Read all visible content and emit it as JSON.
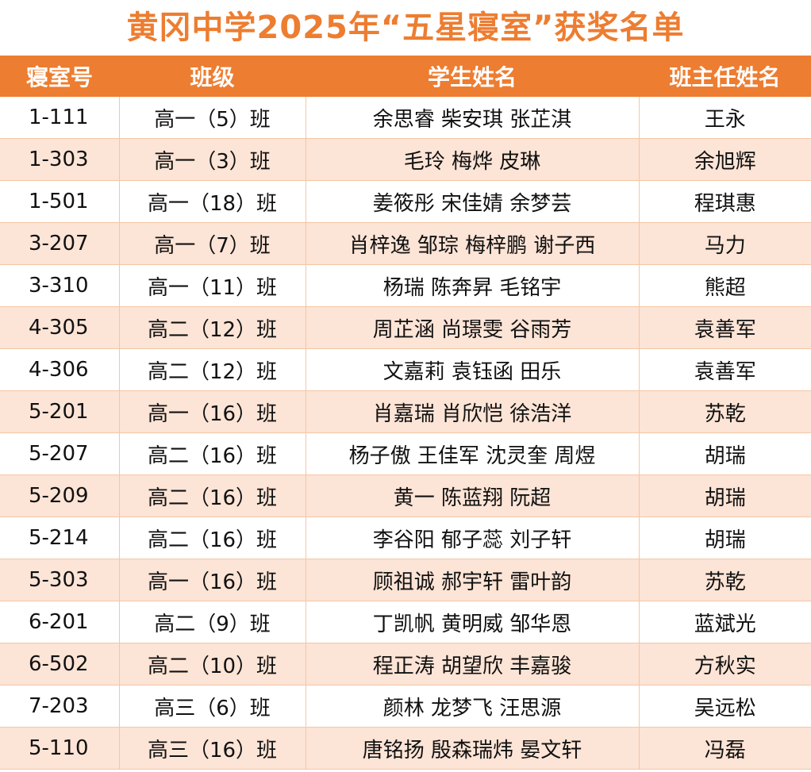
{
  "title": "黄冈中学2025年“五星寝室”获奖名单",
  "headers": [
    "寝室号",
    "班级",
    "学生姓名",
    "班主任姓名"
  ],
  "colors": {
    "accent": "#ED7D31",
    "stripe": "#FCE4D6",
    "border": "#F4C6A5"
  },
  "rows": [
    {
      "room": "1-111",
      "class": "高一（5）班",
      "students": "余思睿 柴安琪 张芷淇",
      "teacher": "王永"
    },
    {
      "room": "1-303",
      "class": "高一（3）班",
      "students": "毛玲 梅烨 皮琳",
      "teacher": "余旭辉"
    },
    {
      "room": "1-501",
      "class": "高一（18）班",
      "students": "姜筱彤 宋佳婧 余梦芸",
      "teacher": "程琪惠"
    },
    {
      "room": "3-207",
      "class": "高一（7）班",
      "students": "肖梓逸 邹琮 梅梓鹏 谢子西",
      "teacher": "马力"
    },
    {
      "room": "3-310",
      "class": "高一（11）班",
      "students": "杨瑞 陈奔昇 毛铭宇",
      "teacher": "熊超"
    },
    {
      "room": "4-305",
      "class": "高二（12）班",
      "students": "周芷涵 尚璟雯 谷雨芳",
      "teacher": "袁善军"
    },
    {
      "room": "4-306",
      "class": "高二（12）班",
      "students": "文嘉莉 袁钰函 田乐",
      "teacher": "袁善军"
    },
    {
      "room": "5-201",
      "class": "高一（16）班",
      "students": "肖嘉瑞  肖欣恺  徐浩洋",
      "teacher": "苏乾"
    },
    {
      "room": "5-207",
      "class": "高二（16）班",
      "students": "杨子傲 王佳军 沈灵奎 周煜",
      "teacher": "胡瑞"
    },
    {
      "room": "5-209",
      "class": "高二（16）班",
      "students": "黄一  陈蓝翔  阮超",
      "teacher": "胡瑞"
    },
    {
      "room": "5-214",
      "class": "高二（16）班",
      "students": "李谷阳 郁子蕊 刘子轩",
      "teacher": "胡瑞"
    },
    {
      "room": "5-303",
      "class": "高一（16）班",
      "students": "顾祖诚 郝宇轩  雷叶韵",
      "teacher": "苏乾"
    },
    {
      "room": "6-201",
      "class": "高二（9）班",
      "students": "丁凯帆 黄明威  邹华恩",
      "teacher": "蓝斌光"
    },
    {
      "room": "6-502",
      "class": "高二（10）班",
      "students": "程正涛 胡望欣 丰嘉骏",
      "teacher": "方秋实"
    },
    {
      "room": "7-203",
      "class": "高三（6）班",
      "students": "颜林  龙梦飞  汪思源",
      "teacher": "吴远松"
    },
    {
      "room": "5-110",
      "class": "高三（16）班",
      "students": "唐铭扬 殷森瑞炜 晏文轩",
      "teacher": "冯磊"
    }
  ]
}
